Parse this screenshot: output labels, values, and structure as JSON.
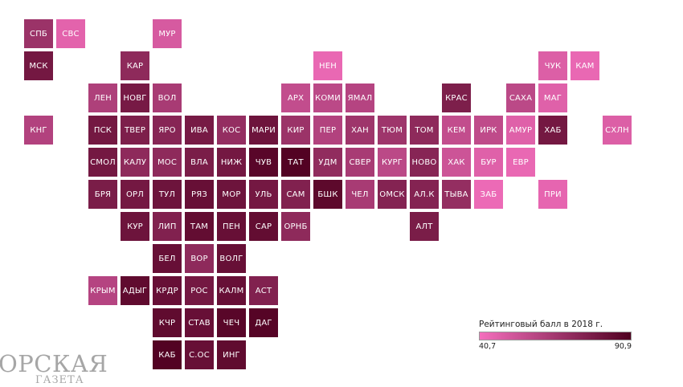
{
  "chart_data": {
    "type": "heatmap",
    "legend": {
      "title": "Рейтинговый балл в 2018 г.",
      "min": "40,7",
      "max": "90,9",
      "min_value": 40.7,
      "max_value": 90.9,
      "color_low": "#f46fbd",
      "color_high": "#500020"
    },
    "cells": [
      {
        "label": "СПБ",
        "row": 0,
        "col": 0,
        "value": 68
      },
      {
        "label": "СВС",
        "row": 0,
        "col": 1,
        "value": 46
      },
      {
        "label": "МУР",
        "row": 0,
        "col": 4,
        "value": 50
      },
      {
        "label": "МСК",
        "row": 1,
        "col": 0,
        "value": 80
      },
      {
        "label": "КАР",
        "row": 1,
        "col": 3,
        "value": 72
      },
      {
        "label": "НЕН",
        "row": 1,
        "col": 9,
        "value": 44
      },
      {
        "label": "ЧУК",
        "row": 1,
        "col": 16,
        "value": 48
      },
      {
        "label": "КАМ",
        "row": 1,
        "col": 17,
        "value": 44
      },
      {
        "label": "ЛЕН",
        "row": 2,
        "col": 2,
        "value": 62
      },
      {
        "label": "НОВГ",
        "row": 2,
        "col": 3,
        "value": 79
      },
      {
        "label": "ВОЛ",
        "row": 2,
        "col": 4,
        "value": 64
      },
      {
        "label": "АРХ",
        "row": 2,
        "col": 8,
        "value": 56
      },
      {
        "label": "КОМИ",
        "row": 2,
        "col": 9,
        "value": 58
      },
      {
        "label": "ЯМАЛ",
        "row": 2,
        "col": 10,
        "value": 60
      },
      {
        "label": "КРАС",
        "row": 2,
        "col": 13,
        "value": 77
      },
      {
        "label": "САХА",
        "row": 2,
        "col": 15,
        "value": 58
      },
      {
        "label": "МАГ",
        "row": 2,
        "col": 16,
        "value": 47
      },
      {
        "label": "КНГ",
        "row": 3,
        "col": 0,
        "value": 61
      },
      {
        "label": "ПСК",
        "row": 3,
        "col": 2,
        "value": 80
      },
      {
        "label": "ТВЕР",
        "row": 3,
        "col": 3,
        "value": 77
      },
      {
        "label": "ЯРО",
        "row": 3,
        "col": 4,
        "value": 74
      },
      {
        "label": "ИВА",
        "row": 3,
        "col": 5,
        "value": 79
      },
      {
        "label": "КОС",
        "row": 3,
        "col": 6,
        "value": 70
      },
      {
        "label": "МАРИ",
        "row": 3,
        "col": 7,
        "value": 82
      },
      {
        "label": "КИР",
        "row": 3,
        "col": 8,
        "value": 68
      },
      {
        "label": "ПЕР",
        "row": 3,
        "col": 9,
        "value": 61
      },
      {
        "label": "ХАН",
        "row": 3,
        "col": 10,
        "value": 67
      },
      {
        "label": "ТЮМ",
        "row": 3,
        "col": 11,
        "value": 67
      },
      {
        "label": "ТОМ",
        "row": 3,
        "col": 12,
        "value": 72
      },
      {
        "label": "КЕМ",
        "row": 3,
        "col": 13,
        "value": 56
      },
      {
        "label": "ИРК",
        "row": 3,
        "col": 14,
        "value": 57
      },
      {
        "label": "АМУР",
        "row": 3,
        "col": 15,
        "value": 47
      },
      {
        "label": "ХАБ",
        "row": 3,
        "col": 16,
        "value": 80
      },
      {
        "label": "СХЛН",
        "row": 3,
        "col": 18,
        "value": 48
      },
      {
        "label": "СМОЛ",
        "row": 4,
        "col": 2,
        "value": 80
      },
      {
        "label": "КАЛУ",
        "row": 4,
        "col": 3,
        "value": 72
      },
      {
        "label": "МОС",
        "row": 4,
        "col": 4,
        "value": 72
      },
      {
        "label": "ВЛА",
        "row": 4,
        "col": 5,
        "value": 78
      },
      {
        "label": "НИЖ",
        "row": 4,
        "col": 6,
        "value": 80
      },
      {
        "label": "ЧУВ",
        "row": 4,
        "col": 7,
        "value": 88
      },
      {
        "label": "ТАТ",
        "row": 4,
        "col": 8,
        "value": 90
      },
      {
        "label": "УДМ",
        "row": 4,
        "col": 9,
        "value": 71
      },
      {
        "label": "СВЕР",
        "row": 4,
        "col": 10,
        "value": 64
      },
      {
        "label": "КУРГ",
        "row": 4,
        "col": 11,
        "value": 58
      },
      {
        "label": "НОВО",
        "row": 4,
        "col": 12,
        "value": 74
      },
      {
        "label": "ХАК",
        "row": 4,
        "col": 13,
        "value": 53
      },
      {
        "label": "БУР",
        "row": 4,
        "col": 14,
        "value": 47
      },
      {
        "label": "ЕВР",
        "row": 4,
        "col": 15,
        "value": 44
      },
      {
        "label": "БРЯ",
        "row": 5,
        "col": 2,
        "value": 78
      },
      {
        "label": "ОРЛ",
        "row": 5,
        "col": 3,
        "value": 80
      },
      {
        "label": "ТУЛ",
        "row": 5,
        "col": 4,
        "value": 82
      },
      {
        "label": "РЯЗ",
        "row": 5,
        "col": 5,
        "value": 84
      },
      {
        "label": "МОР",
        "row": 5,
        "col": 6,
        "value": 82
      },
      {
        "label": "УЛЬ",
        "row": 5,
        "col": 7,
        "value": 80
      },
      {
        "label": "САМ",
        "row": 5,
        "col": 8,
        "value": 76
      },
      {
        "label": "БШК",
        "row": 5,
        "col": 9,
        "value": 87
      },
      {
        "label": "ЧЕЛ",
        "row": 5,
        "col": 10,
        "value": 64
      },
      {
        "label": "ОМСК",
        "row": 5,
        "col": 11,
        "value": 75
      },
      {
        "label": "АЛ.К",
        "row": 5,
        "col": 12,
        "value": 75
      },
      {
        "label": "ТЫВА",
        "row": 5,
        "col": 13,
        "value": 70
      },
      {
        "label": "ЗАБ",
        "row": 5,
        "col": 14,
        "value": 43
      },
      {
        "label": "ПРИ",
        "row": 5,
        "col": 16,
        "value": 45
      },
      {
        "label": "КУР",
        "row": 6,
        "col": 3,
        "value": 82
      },
      {
        "label": "ЛИП",
        "row": 6,
        "col": 4,
        "value": 76
      },
      {
        "label": "ТАМ",
        "row": 6,
        "col": 5,
        "value": 85
      },
      {
        "label": "ПЕН",
        "row": 6,
        "col": 6,
        "value": 84
      },
      {
        "label": "САР",
        "row": 6,
        "col": 7,
        "value": 85
      },
      {
        "label": "ОРНБ",
        "row": 6,
        "col": 8,
        "value": 72
      },
      {
        "label": "АЛТ",
        "row": 6,
        "col": 12,
        "value": 78
      },
      {
        "label": "БЕЛ",
        "row": 7,
        "col": 4,
        "value": 84
      },
      {
        "label": "ВОР",
        "row": 7,
        "col": 5,
        "value": 72
      },
      {
        "label": "ВОЛГ",
        "row": 7,
        "col": 6,
        "value": 84
      },
      {
        "label": "КРЫМ",
        "row": 8,
        "col": 2,
        "value": 60
      },
      {
        "label": "АДЫГ",
        "row": 8,
        "col": 3,
        "value": 86
      },
      {
        "label": "КРДР",
        "row": 8,
        "col": 4,
        "value": 84
      },
      {
        "label": "РОС",
        "row": 8,
        "col": 5,
        "value": 80
      },
      {
        "label": "КАЛМ",
        "row": 8,
        "col": 6,
        "value": 84
      },
      {
        "label": "АСТ",
        "row": 8,
        "col": 7,
        "value": 76
      },
      {
        "label": "КЧР",
        "row": 9,
        "col": 4,
        "value": 86
      },
      {
        "label": "СТАВ",
        "row": 9,
        "col": 5,
        "value": 84
      },
      {
        "label": "ЧЕЧ",
        "row": 9,
        "col": 6,
        "value": 88
      },
      {
        "label": "ДАГ",
        "row": 9,
        "col": 7,
        "value": 89
      },
      {
        "label": "КАБ",
        "row": 10,
        "col": 4,
        "value": 90
      },
      {
        "label": "С.ОС",
        "row": 10,
        "col": 5,
        "value": 84
      },
      {
        "label": "ИНГ",
        "row": 10,
        "col": 6,
        "value": 86
      }
    ]
  },
  "logo": {
    "main": "ОРСКАЯ",
    "sub": "ГАЗЕТА"
  }
}
